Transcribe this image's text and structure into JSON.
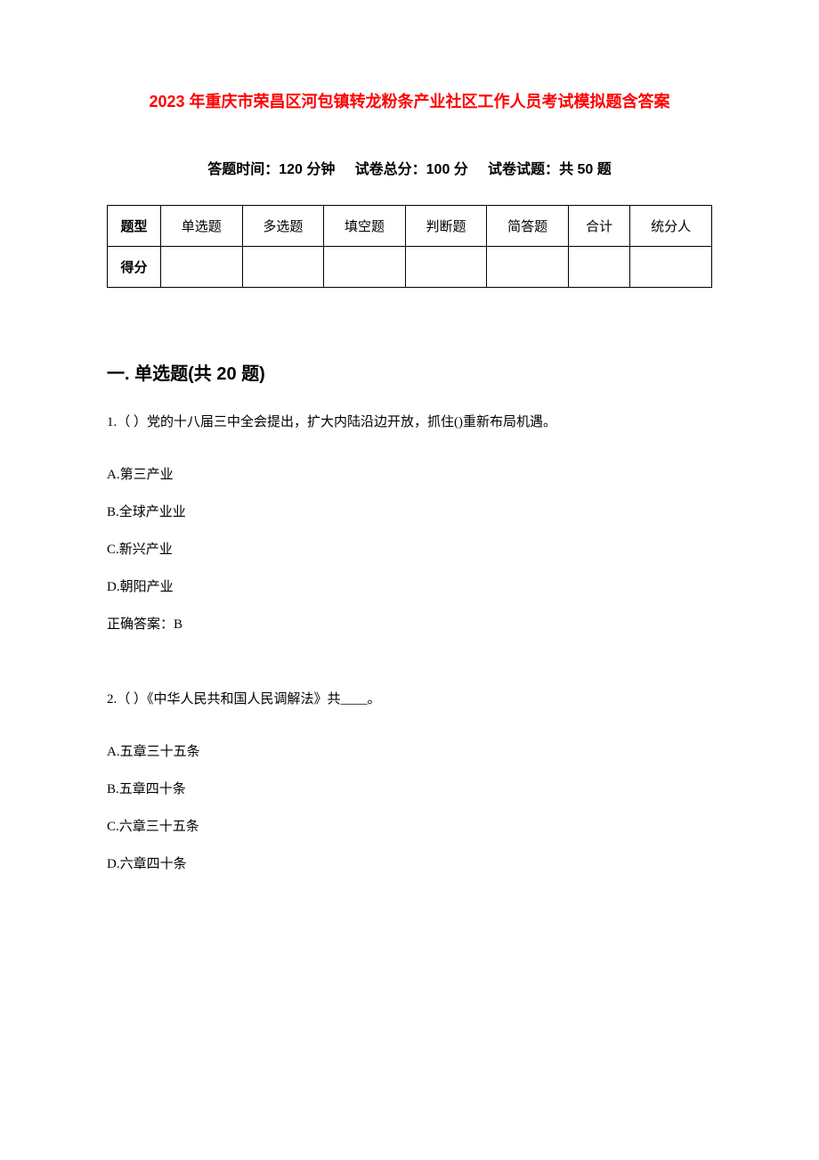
{
  "title": "2023 年重庆市荣昌区河包镇转龙粉条产业社区工作人员考试模拟题含答案",
  "exam_info": {
    "time_label": "答题时间：",
    "time_value": "120 分钟",
    "total_label": "试卷总分：",
    "total_value": "100 分",
    "count_label": "试卷试题：",
    "count_value": "共 50 题"
  },
  "score_table": {
    "row1_label": "题型",
    "columns": [
      "单选题",
      "多选题",
      "填空题",
      "判断题",
      "简答题",
      "合计",
      "统分人"
    ],
    "row2_label": "得分"
  },
  "section1": {
    "heading": "一. 单选题(共 20 题)",
    "questions": [
      {
        "text": "1.（ ）党的十八届三中全会提出，扩大内陆沿边开放，抓住()重新布局机遇。",
        "options": [
          "A.第三产业",
          "B.全球产业业",
          "C.新兴产业",
          "D.朝阳产业"
        ],
        "answer": "正确答案：B"
      },
      {
        "text": "2.（ ）《中华人民共和国人民调解法》共____。",
        "options": [
          "A.五章三十五条",
          "B.五章四十条",
          "C.六章三十五条",
          "D.六章四十条"
        ],
        "answer": ""
      }
    ]
  }
}
